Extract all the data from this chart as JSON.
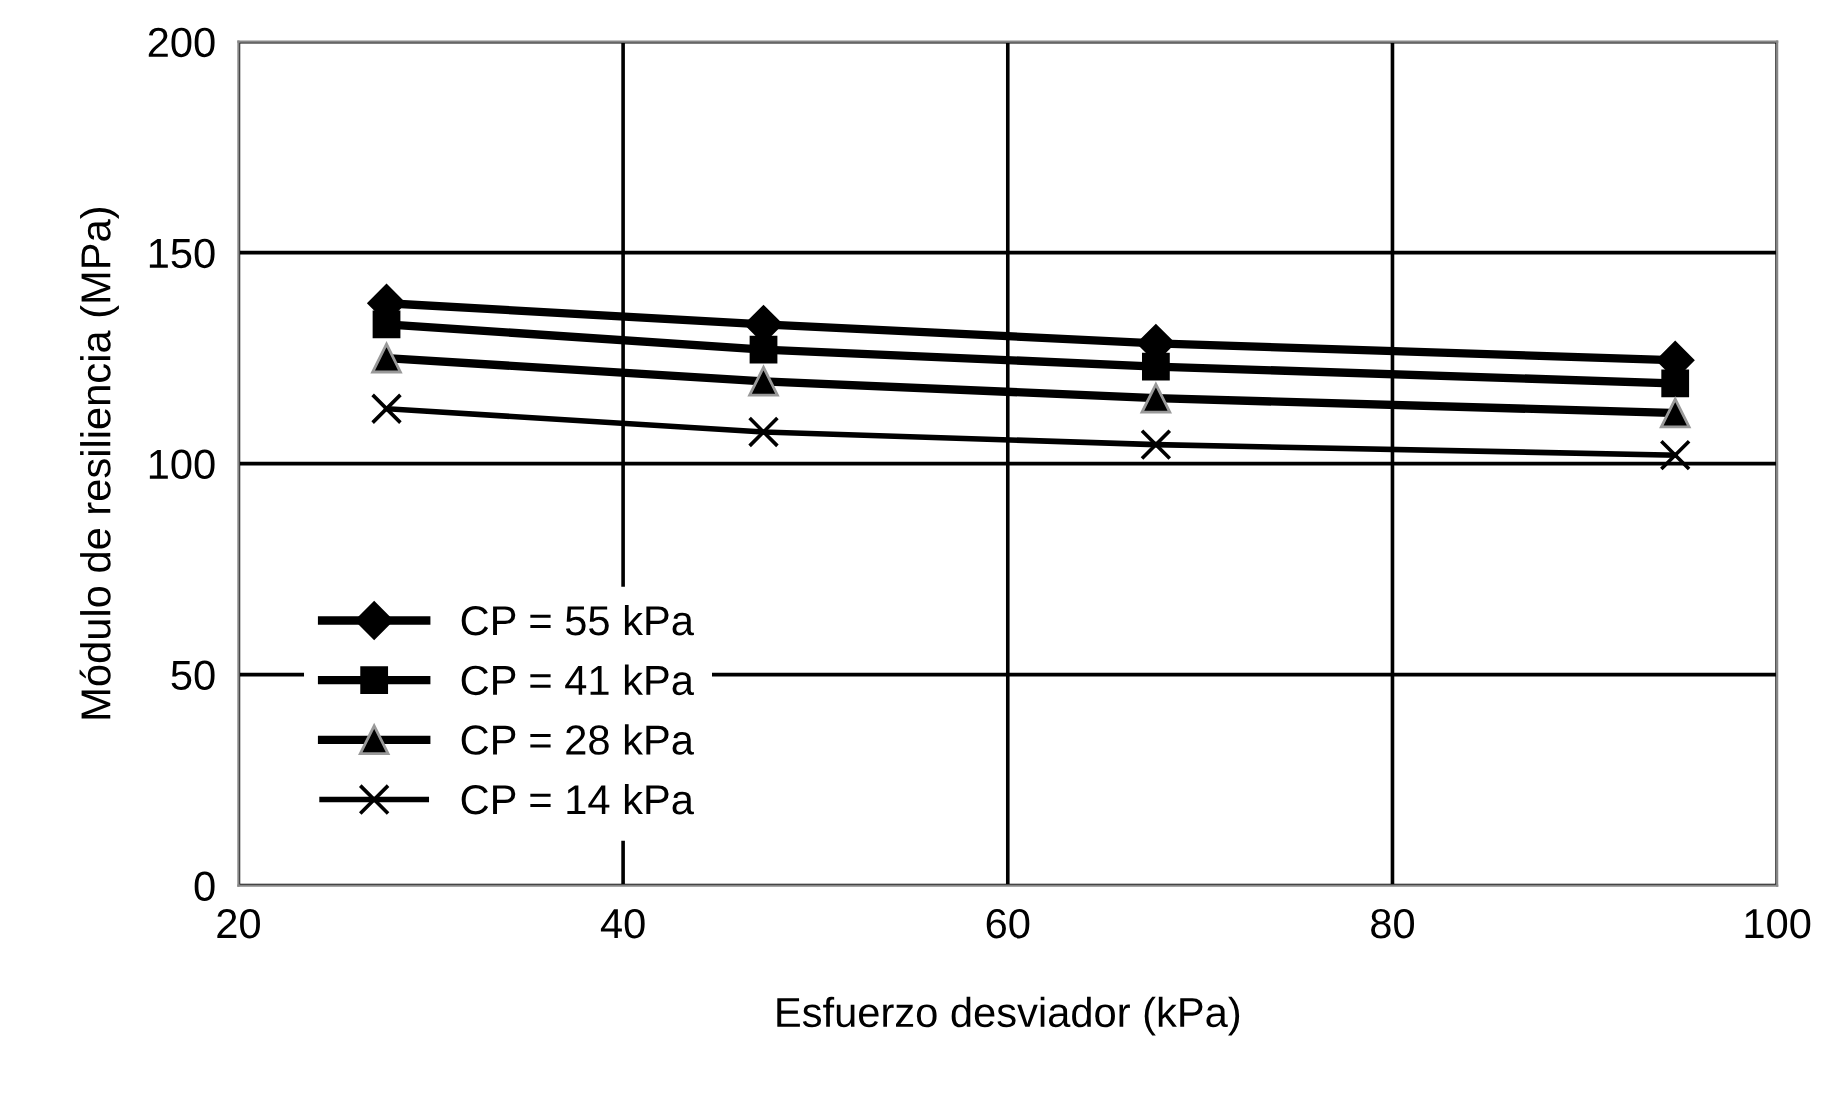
{
  "chart_data": {
    "type": "line",
    "xlabel": "Esfuerzo desviador (kPa)",
    "ylabel": "Módulo de resiliencia (MPa)",
    "x": [
      27.7,
      47.3,
      67.7,
      94.7
    ],
    "series": [
      {
        "name": "CP = 55 kPa",
        "color": "#000000",
        "marker": "diamond",
        "values": [
          138,
          133,
          128.5,
          124.5
        ]
      },
      {
        "name": "CP = 41 kPa",
        "color": "#000000",
        "marker": "square",
        "values": [
          133,
          127,
          123,
          119
        ]
      },
      {
        "name": "CP = 28 kPa",
        "color": "#000000",
        "marker": "triangle",
        "values": [
          125,
          119.5,
          115.5,
          112
        ]
      },
      {
        "name": "CP = 14 kPa",
        "color": "#000000",
        "marker": "cross",
        "values": [
          113,
          107.5,
          104.5,
          102
        ]
      }
    ],
    "xlim": [
      20,
      100
    ],
    "xticks": [
      20,
      40,
      60,
      80,
      100
    ],
    "ylim": [
      0,
      200
    ],
    "yticks": [
      0,
      50,
      100,
      150,
      200
    ],
    "grid": true,
    "legend": "bottom left",
    "line_style": "solid"
  }
}
